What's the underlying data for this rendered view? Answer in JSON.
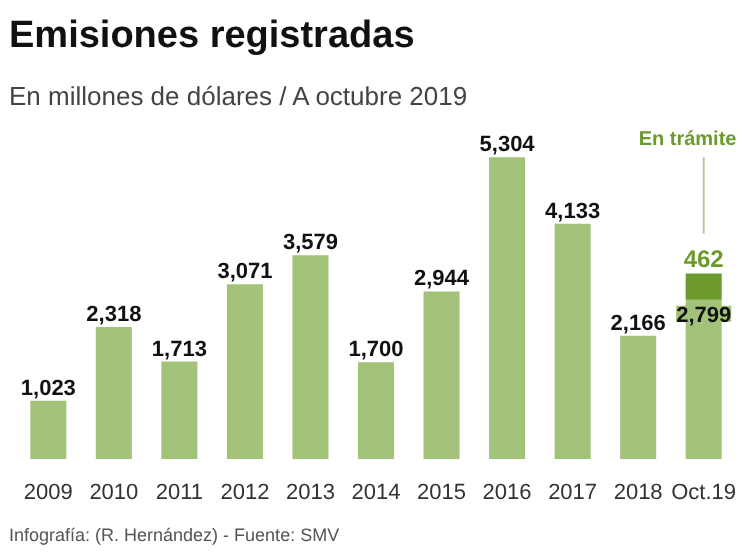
{
  "chart_data": {
    "type": "bar",
    "title": "Emisiones registradas",
    "subtitle": "En millones de dólares / A octubre 2019",
    "categories": [
      "2009",
      "2010",
      "2011",
      "2012",
      "2013",
      "2014",
      "2015",
      "2016",
      "2017",
      "2018",
      "Oct.19"
    ],
    "stacked": true,
    "series": [
      {
        "color": "#a3c27a",
        "values": [
          1023,
          2318,
          1713,
          3071,
          3579,
          1700,
          2944,
          5304,
          4133,
          2166,
          2799
        ],
        "value_labels": [
          "1,023",
          "2,318",
          "1,713",
          "3,071",
          "3,579",
          "1,700",
          "2,944",
          "5,304",
          "4,133",
          "2,166",
          "2,799"
        ]
      },
      {
        "name": "En trámite",
        "color": "#6c9a2c",
        "values": [
          null,
          null,
          null,
          null,
          null,
          null,
          null,
          null,
          null,
          null,
          462
        ],
        "value_labels": [
          null,
          null,
          null,
          null,
          null,
          null,
          null,
          null,
          null,
          null,
          "462"
        ]
      }
    ],
    "annotations": [
      "Infografía: (R. Hernández) - Fuente: SMV"
    ],
    "legend": false
  }
}
